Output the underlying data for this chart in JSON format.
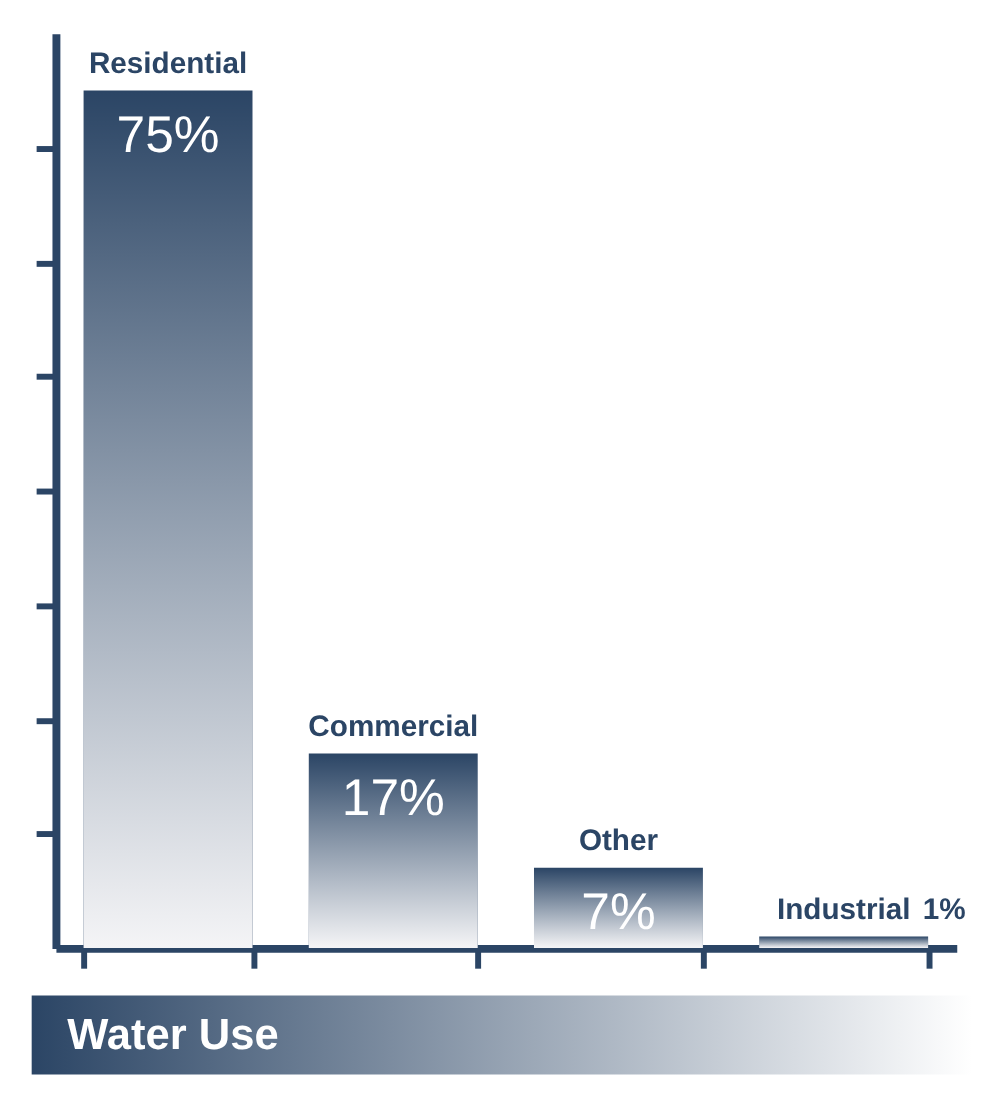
{
  "chart_data": {
    "type": "bar",
    "title": "Water Use",
    "categories": [
      "Residential",
      "Commercial",
      "Other",
      "Industrial"
    ],
    "values": [
      75,
      17,
      7,
      1
    ],
    "value_labels": [
      "75%",
      "17%",
      "7%",
      "1%"
    ],
    "color": "#2b4565",
    "ylim": [
      0,
      80
    ],
    "yticks": [
      {
        "value": 10,
        "label": null
      },
      {
        "value": 20,
        "label": null
      },
      {
        "value": 30,
        "label": null
      },
      {
        "value": 40,
        "label": null
      },
      {
        "value": 50,
        "label": null
      },
      {
        "value": 60,
        "label": null
      },
      {
        "value": 70,
        "label": null
      }
    ],
    "tick_labels": false,
    "grid": false
  }
}
